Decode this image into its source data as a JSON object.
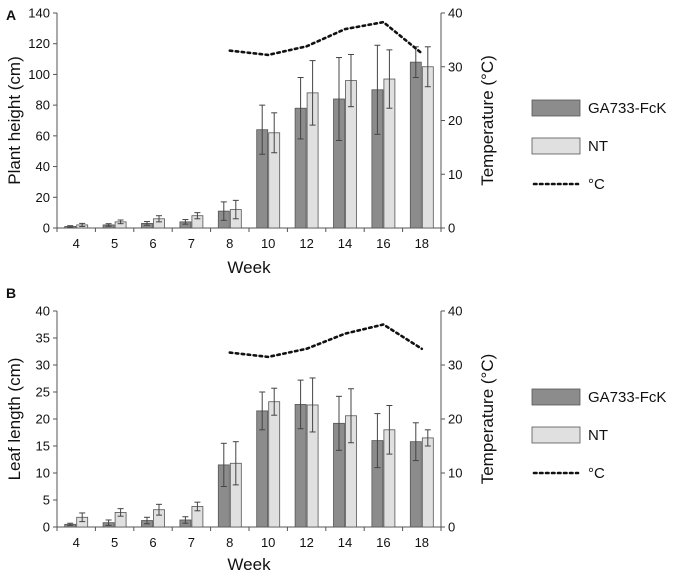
{
  "colors": {
    "series1": "#8c8c8c",
    "series2": "#e0e0e0",
    "temp": "#111111",
    "axis": "#555555"
  },
  "chart_data": [
    {
      "panel": "A",
      "type": "bar",
      "categories": [
        "4",
        "5",
        "6",
        "7",
        "8",
        "10",
        "12",
        "14",
        "16",
        "18"
      ],
      "xlabel": "Week",
      "ylabel": "Plant height (cm)",
      "y2label": "Temperature (°C)",
      "ylim": [
        0,
        140
      ],
      "yticks": [
        0,
        20,
        40,
        60,
        80,
        100,
        120,
        140
      ],
      "y2lim": [
        0,
        40
      ],
      "y2ticks": [
        0,
        10,
        20,
        30,
        40
      ],
      "series": [
        {
          "name": "GA733-FcK",
          "values": [
            1,
            2,
            3,
            4,
            11,
            64,
            78,
            84,
            90,
            108
          ],
          "errors": [
            0.5,
            0.8,
            1.2,
            1.5,
            6,
            16,
            20,
            27,
            29,
            10
          ]
        },
        {
          "name": "NT",
          "values": [
            2,
            4,
            6,
            8,
            12,
            62,
            88,
            96,
            97,
            105
          ],
          "errors": [
            1,
            1.2,
            2,
            2,
            6,
            13,
            21,
            17,
            19,
            13
          ]
        }
      ],
      "temperature": {
        "name": "°C",
        "x": [
          "8",
          "10",
          "12",
          "14",
          "16",
          "18"
        ],
        "values": [
          33,
          32.2,
          33.8,
          37,
          38.3,
          32.5
        ]
      },
      "legend": {
        "labels": [
          "GA733-FcK",
          "NT",
          "°C"
        ],
        "position": "right"
      }
    },
    {
      "panel": "B",
      "type": "bar",
      "categories": [
        "4",
        "5",
        "6",
        "7",
        "8",
        "10",
        "12",
        "14",
        "16",
        "18"
      ],
      "xlabel": "Week",
      "ylabel": "Leaf length (cm)",
      "y2label": "Temperature (°C)",
      "ylim": [
        0,
        40
      ],
      "yticks": [
        0,
        5,
        10,
        15,
        20,
        25,
        30,
        35,
        40
      ],
      "y2lim": [
        0,
        40
      ],
      "y2ticks": [
        0,
        10,
        20,
        30,
        40
      ],
      "series": [
        {
          "name": "GA733-FcK",
          "values": [
            0.5,
            0.8,
            1.2,
            1.3,
            11.5,
            21.5,
            22.7,
            19.2,
            16,
            15.8
          ],
          "errors": [
            0.2,
            0.5,
            0.6,
            0.6,
            4,
            3.5,
            4.5,
            5,
            5,
            3.5
          ]
        },
        {
          "name": "NT",
          "values": [
            1.8,
            2.7,
            3.2,
            3.8,
            11.8,
            23.2,
            22.6,
            20.6,
            18,
            16.5
          ],
          "errors": [
            0.8,
            0.7,
            1,
            0.8,
            4,
            2.5,
            5,
            5,
            4.5,
            1.5
          ]
        }
      ],
      "temperature": {
        "name": "°C",
        "x": [
          "8",
          "10",
          "12",
          "14",
          "16",
          "18"
        ],
        "values": [
          32.3,
          31.5,
          33,
          35.8,
          37.5,
          33
        ]
      },
      "legend": {
        "labels": [
          "GA733-FcK",
          "NT",
          "°C"
        ],
        "position": "right"
      }
    }
  ]
}
